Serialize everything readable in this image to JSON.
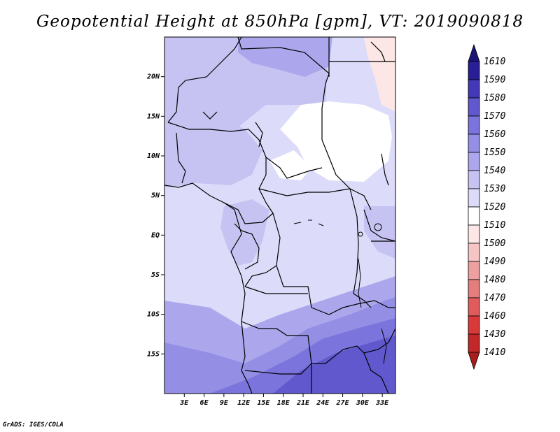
{
  "title": "Geopotential Height at 850hPa [gpm], VT: 2019090818",
  "footer": "GrADS: IGES/COLA",
  "chart_data": {
    "type": "heatmap",
    "title": "Geopotential Height at 850hPa [gpm], VT: 2019090818",
    "variable": "Geopotential Height",
    "level": "850hPa",
    "units": "gpm",
    "valid_time": "2019090818",
    "xlim": [
      0,
      35
    ],
    "ylim": [
      -20,
      25
    ],
    "x_ticks": [
      3,
      6,
      9,
      12,
      15,
      18,
      21,
      24,
      27,
      30,
      33
    ],
    "x_tick_labels": [
      "3E",
      "6E",
      "9E",
      "12E",
      "15E",
      "18E",
      "21E",
      "24E",
      "27E",
      "30E",
      "33E"
    ],
    "y_ticks": [
      20,
      15,
      10,
      5,
      0,
      -5,
      -10,
      -15
    ],
    "y_tick_labels": [
      "20N",
      "15N",
      "10N",
      "5N",
      "EQ",
      "5S",
      "10S",
      "15S"
    ],
    "colorbar": {
      "placement": "right",
      "levels": [
        1410,
        1430,
        1460,
        1470,
        1480,
        1490,
        1500,
        1510,
        1520,
        1530,
        1540,
        1550,
        1560,
        1570,
        1580,
        1590,
        1610
      ],
      "colors": [
        "#a81e1e",
        "#c22828",
        "#d83a3a",
        "#e05c5c",
        "#e47e7e",
        "#eca0a0",
        "#f6c6c6",
        "#fce6e6",
        "#ffffff",
        "#dcdcfa",
        "#c6c2f2",
        "#aca6ec",
        "#948ee4",
        "#7b74dc",
        "#6058cc",
        "#4438b8",
        "#2a1e96",
        "#1c1478"
      ]
    },
    "regions": [
      {
        "name": "base",
        "value": 1525
      },
      {
        "name": "north-west",
        "value": 1535
      },
      {
        "name": "sahara-north",
        "value": 1545
      },
      {
        "name": "sudan-white",
        "value": 1515
      },
      {
        "name": "east-pink",
        "value": 1505
      },
      {
        "name": "congo-central",
        "value": 1525
      },
      {
        "name": "gabon-pocket",
        "value": 1535
      },
      {
        "name": "south-band-1",
        "value": 1545
      },
      {
        "name": "south-band-2",
        "value": 1555
      },
      {
        "name": "south-band-3",
        "value": 1565
      },
      {
        "name": "south-band-4",
        "value": 1575
      },
      {
        "name": "great-lakes",
        "value": 1535
      }
    ]
  }
}
